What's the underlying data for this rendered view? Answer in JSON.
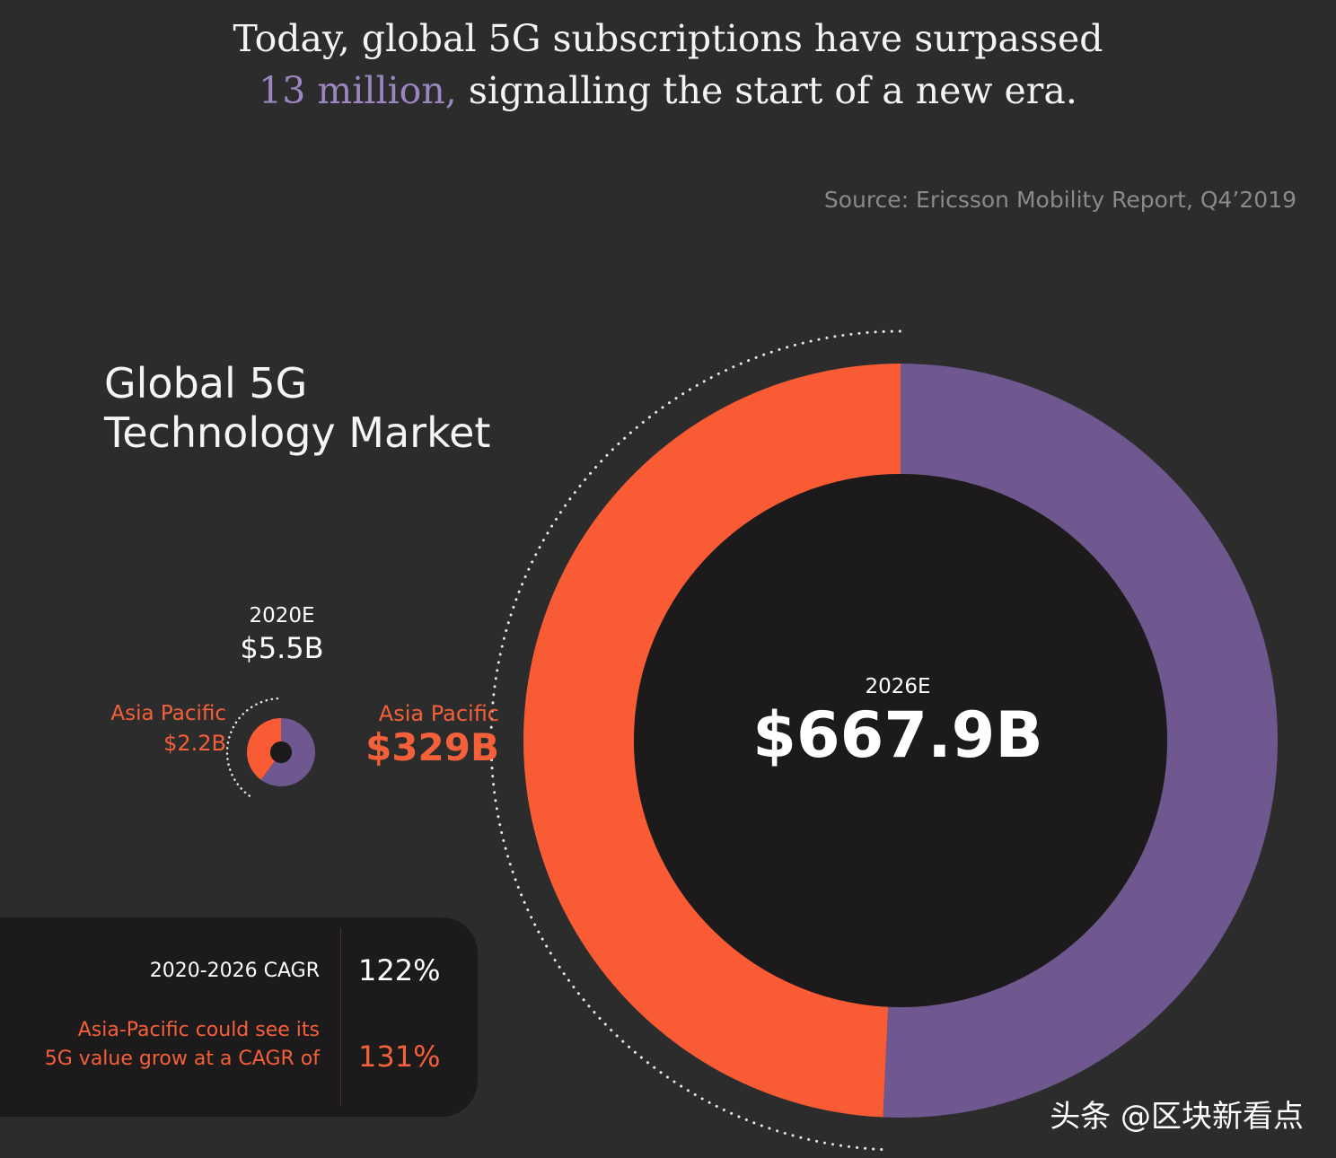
{
  "header": {
    "headline_line1": "Today, global 5G subscriptions have surpassed",
    "headline_highlight": "13 million,",
    "headline_line2_rest": " signalling the start of a new era.",
    "source": "Source: Ericsson Mobility Report, Q4’2019"
  },
  "title": {
    "line1": "Global 5G",
    "line2": "Technology Market"
  },
  "chart_data": [
    {
      "type": "pie",
      "variant": "donut",
      "year": "2020E",
      "total_label": "$5.5B",
      "total": 5.5,
      "unit": "$B",
      "segments": [
        {
          "name": "Asia Pacific",
          "value": 2.2,
          "value_label": "$2.2B",
          "color": "#f95b35"
        },
        {
          "value": 3.3,
          "color": "#6f5790"
        }
      ]
    },
    {
      "type": "pie",
      "variant": "donut",
      "year": "2026E",
      "total_label": "$667.9B",
      "total": 667.9,
      "unit": "$B",
      "segments": [
        {
          "name": "Asia Pacific",
          "value": 329,
          "value_label": "$329B",
          "color": "#f95b35"
        },
        {
          "value": 338.9,
          "color": "#6f5790"
        }
      ]
    }
  ],
  "cagr": {
    "global_label": "2020-2026 CAGR",
    "global_value": "122%",
    "asia_label_line1": "Asia-Pacific could see its",
    "asia_label_line2": "5G value grow at a CAGR of",
    "asia_value": "131%"
  },
  "watermark": "头条 @区块新看点",
  "colors": {
    "background": "#2c2c2c",
    "asia_pacific": "#f95b35",
    "rest_of_world": "#6f5790",
    "donut_hole": "#1d1a1b",
    "highlight_text": "#9b87c0"
  }
}
